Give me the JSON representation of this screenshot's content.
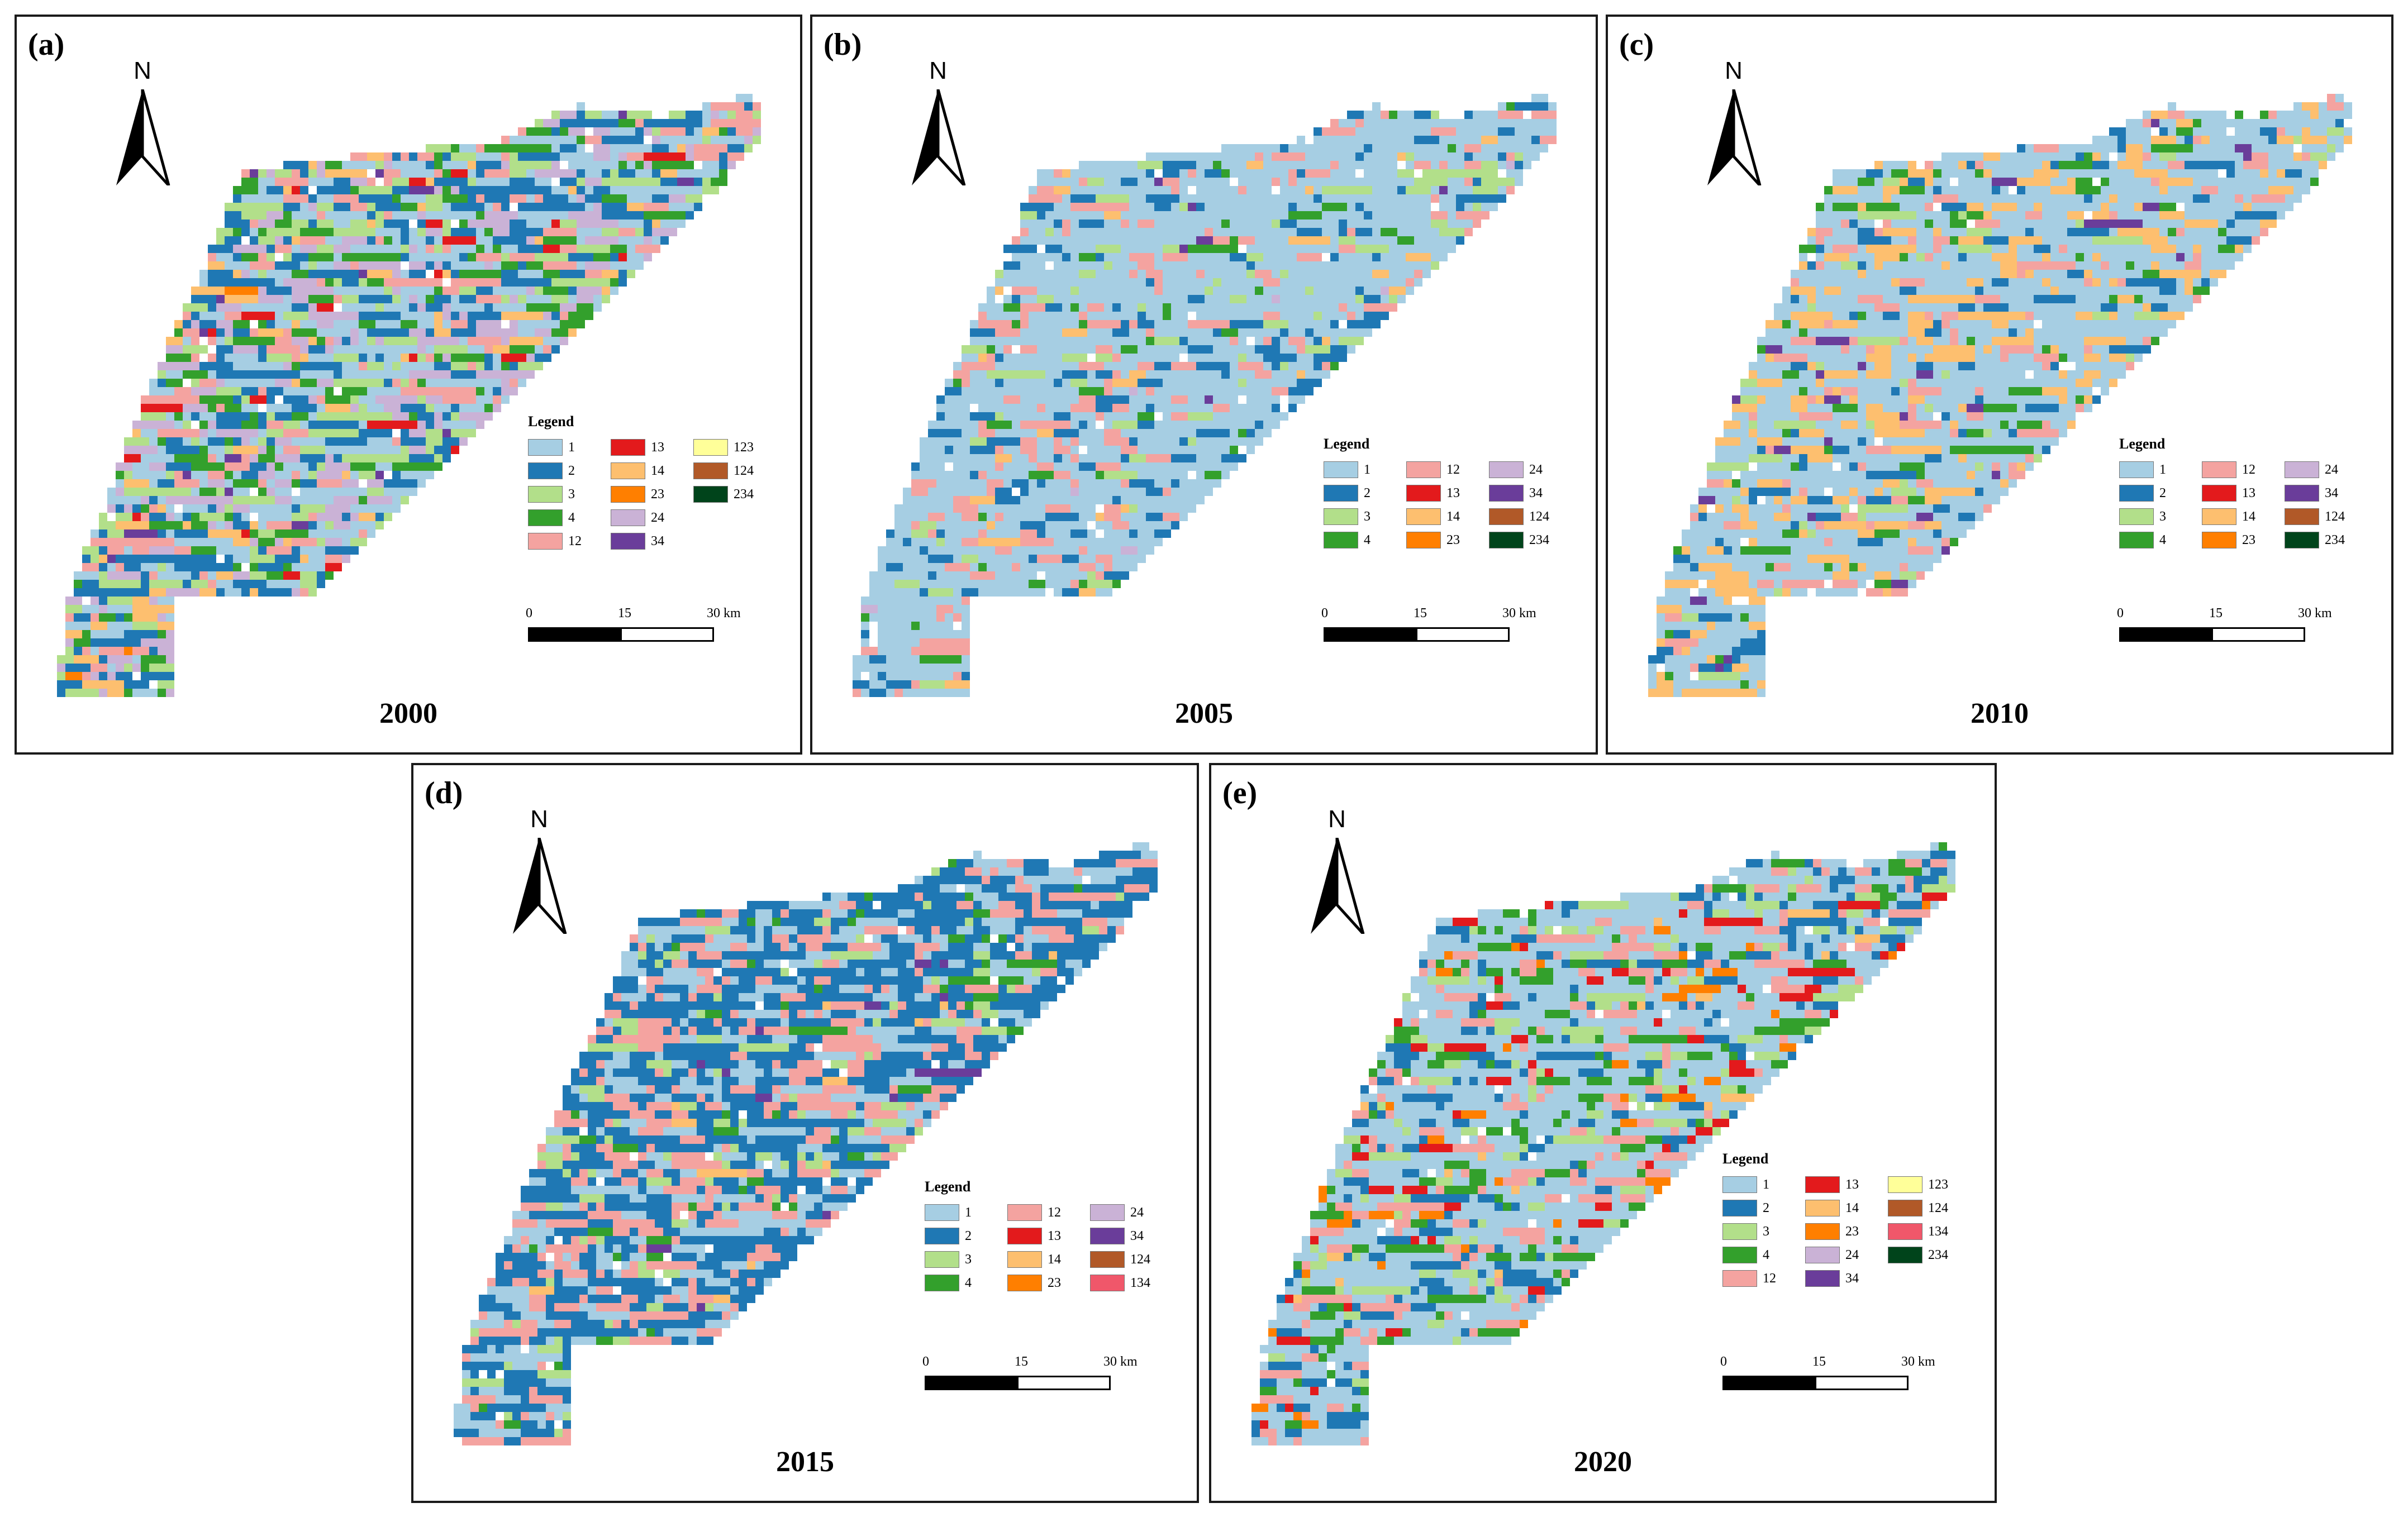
{
  "categories": [
    {
      "code": "1",
      "color": "#a6cee3"
    },
    {
      "code": "2",
      "color": "#1f78b4"
    },
    {
      "code": "3",
      "color": "#b2df8a"
    },
    {
      "code": "4",
      "color": "#33a02c"
    },
    {
      "code": "12",
      "color": "#f4a3a0"
    },
    {
      "code": "13",
      "color": "#e31a1c"
    },
    {
      "code": "14",
      "color": "#fdbf6f"
    },
    {
      "code": "23",
      "color": "#ff7f00"
    },
    {
      "code": "24",
      "color": "#cab2d6"
    },
    {
      "code": "34",
      "color": "#6a3d9a"
    },
    {
      "code": "123",
      "color": "#ffff99"
    },
    {
      "code": "124",
      "color": "#b15928"
    },
    {
      "code": "134",
      "color": "#f0576a"
    },
    {
      "code": "234",
      "color": "#00441b"
    }
  ],
  "panels": [
    {
      "label": "(a)",
      "year": "2000",
      "legend": {
        "title": "Legend",
        "items": [
          "1",
          "2",
          "3",
          "4",
          "12",
          "13",
          "14",
          "23",
          "24",
          "34",
          "123",
          "124",
          "234"
        ]
      },
      "scale": {
        "ticks": [
          "0",
          "15",
          "30 km"
        ]
      },
      "mix": {
        "1": 0.22,
        "2": 0.22,
        "3": 0.12,
        "4": 0.1,
        "12": 0.1,
        "24": 0.16,
        "14": 0.05,
        "13": 0.015,
        "34": 0.01,
        "23": 0.005
      }
    },
    {
      "label": "(b)",
      "year": "2005",
      "legend": {
        "title": "Legend",
        "items": [
          "1",
          "2",
          "3",
          "4",
          "12",
          "13",
          "14",
          "23",
          "24",
          "34",
          "124",
          "234"
        ]
      },
      "scale": {
        "ticks": [
          "0",
          "15",
          "30 km"
        ]
      },
      "mix": {
        "1": 0.64,
        "2": 0.12,
        "12": 0.13,
        "3": 0.05,
        "4": 0.03,
        "14": 0.02,
        "34": 0.005,
        "24": 0.005
      }
    },
    {
      "label": "(c)",
      "year": "2010",
      "legend": {
        "title": "Legend",
        "items": [
          "1",
          "2",
          "3",
          "4",
          "12",
          "13",
          "14",
          "23",
          "24",
          "34",
          "124",
          "234"
        ]
      },
      "scale": {
        "ticks": [
          "0",
          "15",
          "30 km"
        ]
      },
      "mix": {
        "1": 0.56,
        "14": 0.17,
        "2": 0.08,
        "12": 0.08,
        "4": 0.06,
        "3": 0.03,
        "34": 0.02
      }
    },
    {
      "label": "(d)",
      "year": "2015",
      "legend": {
        "title": "Legend",
        "items": [
          "1",
          "2",
          "3",
          "4",
          "12",
          "13",
          "14",
          "23",
          "24",
          "34",
          "124",
          "134"
        ]
      },
      "scale": {
        "ticks": [
          "0",
          "15",
          "30 km"
        ]
      },
      "mix": {
        "2": 0.44,
        "1": 0.24,
        "12": 0.21,
        "3": 0.06,
        "4": 0.03,
        "14": 0.01,
        "34": 0.01
      }
    },
    {
      "label": "(e)",
      "year": "2020",
      "legend": {
        "title": "Legend",
        "items": [
          "1",
          "2",
          "3",
          "4",
          "12",
          "13",
          "14",
          "23",
          "24",
          "34",
          "123",
          "124",
          "134",
          "234"
        ]
      },
      "scale": {
        "ticks": [
          "0",
          "15",
          "30 km"
        ]
      },
      "mix": {
        "1": 0.5,
        "12": 0.13,
        "2": 0.13,
        "3": 0.08,
        "4": 0.08,
        "13": 0.04,
        "23": 0.03,
        "14": 0.01
      }
    }
  ]
}
